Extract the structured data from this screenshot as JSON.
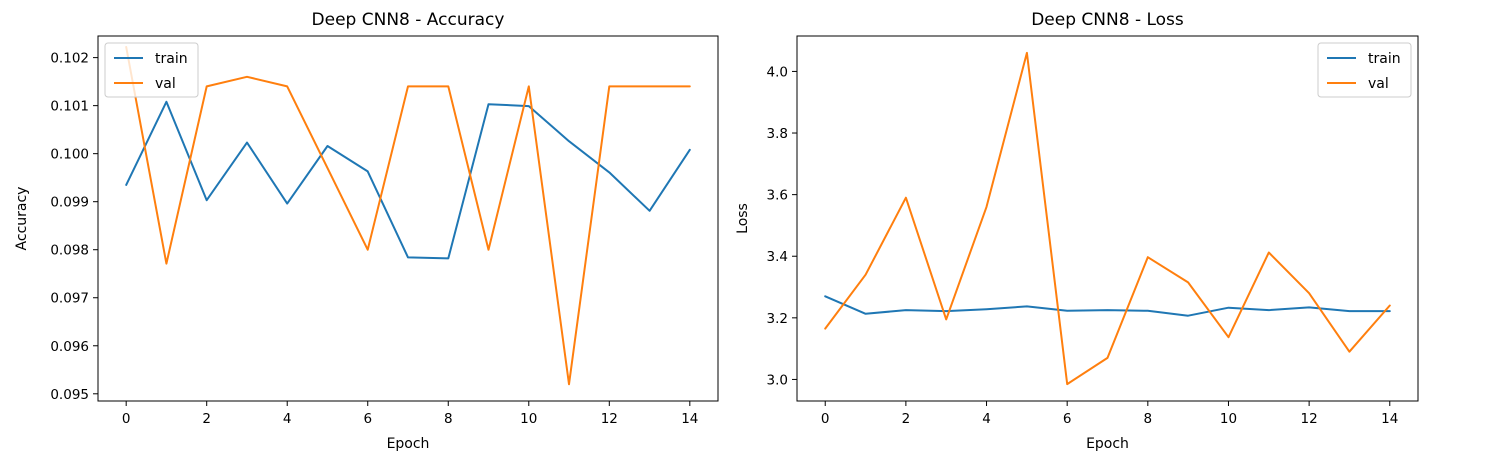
{
  "chart_data": [
    {
      "type": "line",
      "title": "Deep CNN8 - Accuracy",
      "xlabel": "Epoch",
      "ylabel": "Accuracy",
      "xlim": [
        -0.7,
        14.7
      ],
      "ylim": [
        0.09485,
        0.10245
      ],
      "xticks": [
        0,
        2,
        4,
        6,
        8,
        10,
        12,
        14
      ],
      "xtick_labels": [
        "0",
        "2",
        "4",
        "6",
        "8",
        "10",
        "12",
        "14"
      ],
      "yticks": [
        0.095,
        0.096,
        0.097,
        0.098,
        0.099,
        0.1,
        0.101,
        0.102
      ],
      "ytick_labels": [
        "0.095",
        "0.096",
        "0.097",
        "0.098",
        "0.099",
        "0.100",
        "0.101",
        "0.102"
      ],
      "legend_position": "upper-left",
      "grid": false,
      "x": [
        0,
        1,
        2,
        3,
        4,
        5,
        6,
        7,
        8,
        9,
        10,
        11,
        12,
        13,
        14
      ],
      "series": [
        {
          "name": "train",
          "color": "#1f77b4",
          "values": [
            0.09935,
            0.10108,
            0.09903,
            0.10023,
            0.09896,
            0.10016,
            0.09963,
            0.09784,
            0.09782,
            0.10103,
            0.10099,
            0.10026,
            0.09961,
            0.09881,
            0.10008
          ]
        },
        {
          "name": "val",
          "color": "#ff7f0e",
          "values": [
            0.10222,
            0.09771,
            0.1014,
            0.1016,
            0.1014,
            0.0997,
            0.098,
            0.1014,
            0.1014,
            0.098,
            0.1014,
            0.0952,
            0.1014,
            0.1014,
            0.1014
          ]
        }
      ]
    },
    {
      "type": "line",
      "title": "Deep CNN8 - Loss",
      "xlabel": "Epoch",
      "ylabel": "Loss",
      "xlim": [
        -0.7,
        14.7
      ],
      "ylim": [
        2.93,
        4.115
      ],
      "xticks": [
        0,
        2,
        4,
        6,
        8,
        10,
        12,
        14
      ],
      "xtick_labels": [
        "0",
        "2",
        "4",
        "6",
        "8",
        "10",
        "12",
        "14"
      ],
      "yticks": [
        3.0,
        3.2,
        3.4,
        3.6,
        3.8,
        4.0
      ],
      "ytick_labels": [
        "3.0",
        "3.2",
        "3.4",
        "3.6",
        "3.8",
        "4.0"
      ],
      "legend_position": "upper-right",
      "grid": false,
      "x": [
        0,
        1,
        2,
        3,
        4,
        5,
        6,
        7,
        8,
        9,
        10,
        11,
        12,
        13,
        14
      ],
      "series": [
        {
          "name": "train",
          "color": "#1f77b4",
          "values": [
            3.27,
            3.213,
            3.225,
            3.222,
            3.228,
            3.237,
            3.223,
            3.225,
            3.223,
            3.207,
            3.233,
            3.225,
            3.234,
            3.222,
            3.222
          ]
        },
        {
          "name": "val",
          "color": "#ff7f0e",
          "values": [
            3.165,
            3.34,
            3.59,
            3.195,
            3.56,
            4.06,
            2.985,
            3.07,
            3.397,
            3.315,
            3.137,
            3.412,
            3.28,
            3.09,
            3.24
          ]
        }
      ]
    }
  ]
}
